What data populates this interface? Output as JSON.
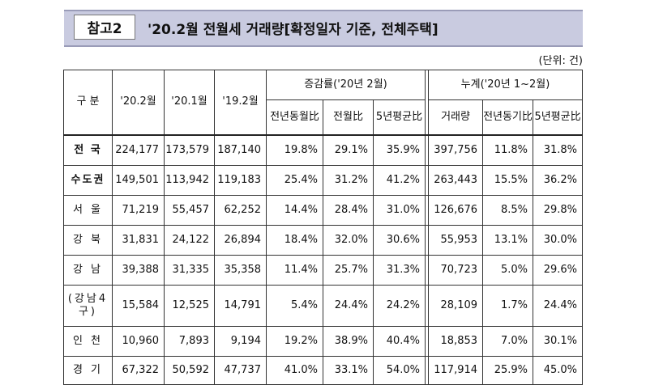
{
  "header": {
    "badge": "참고2",
    "title": "'20.2월 전월세 거래량[확정일자 기준, 전체주택]",
    "unit": "(단위: 건)"
  },
  "columns": {
    "region": "구 분",
    "feb20": "'20.2월",
    "jan20": "'20.1월",
    "feb19": "'19.2월",
    "change_group": "증감률('20년 2월)",
    "yoy": "전년동월比",
    "mom": "전월比",
    "avg5": "5년평균比",
    "cum_group": "누계('20년 1~2월)",
    "cum_volume": "거래량",
    "cum_yoy": "전년동기比",
    "cum_avg5": "5년평균比"
  },
  "rows": [
    {
      "region": "전 국",
      "bold": true,
      "feb20": "224,177",
      "jan20": "173,579",
      "feb19": "187,140",
      "yoy": "19.8%",
      "mom": "29.1%",
      "avg5": "35.9%",
      "cum": "397,756",
      "cum_yoy": "11.8%",
      "cum_avg5": "31.8%"
    },
    {
      "region": "수도권",
      "bold": true,
      "feb20": "149,501",
      "jan20": "113,942",
      "feb19": "119,183",
      "yoy": "25.4%",
      "mom": "31.2%",
      "avg5": "41.2%",
      "cum": "263,443",
      "cum_yoy": "15.5%",
      "cum_avg5": "36.2%"
    },
    {
      "region": "서 울",
      "feb20": "71,219",
      "jan20": "55,457",
      "feb19": "62,252",
      "yoy": "14.4%",
      "mom": "28.4%",
      "avg5": "31.0%",
      "cum": "126,676",
      "cum_yoy": "8.5%",
      "cum_avg5": "29.8%"
    },
    {
      "region": "강 북",
      "feb20": "31,831",
      "jan20": "24,122",
      "feb19": "26,894",
      "yoy": "18.4%",
      "mom": "32.0%",
      "avg5": "30.6%",
      "cum": "55,953",
      "cum_yoy": "13.1%",
      "cum_avg5": "30.0%"
    },
    {
      "region": "강 남",
      "feb20": "39,388",
      "jan20": "31,335",
      "feb19": "35,358",
      "yoy": "11.4%",
      "mom": "25.7%",
      "avg5": "31.3%",
      "cum": "70,723",
      "cum_yoy": "5.0%",
      "cum_avg5": "29.6%"
    },
    {
      "region": "(강남4구)",
      "feb20": "15,584",
      "jan20": "12,525",
      "feb19": "14,791",
      "yoy": "5.4%",
      "mom": "24.4%",
      "avg5": "24.2%",
      "cum": "28,109",
      "cum_yoy": "1.7%",
      "cum_avg5": "24.4%"
    },
    {
      "region": "인 천",
      "feb20": "10,960",
      "jan20": "7,893",
      "feb19": "9,194",
      "yoy": "19.2%",
      "mom": "38.9%",
      "avg5": "40.4%",
      "cum": "18,853",
      "cum_yoy": "7.0%",
      "cum_avg5": "30.1%"
    },
    {
      "region": "경 기",
      "feb20": "67,322",
      "jan20": "50,592",
      "feb19": "47,737",
      "yoy": "41.0%",
      "mom": "33.1%",
      "avg5": "54.0%",
      "cum": "117,914",
      "cum_yoy": "25.9%",
      "cum_avg5": "45.0%"
    }
  ]
}
